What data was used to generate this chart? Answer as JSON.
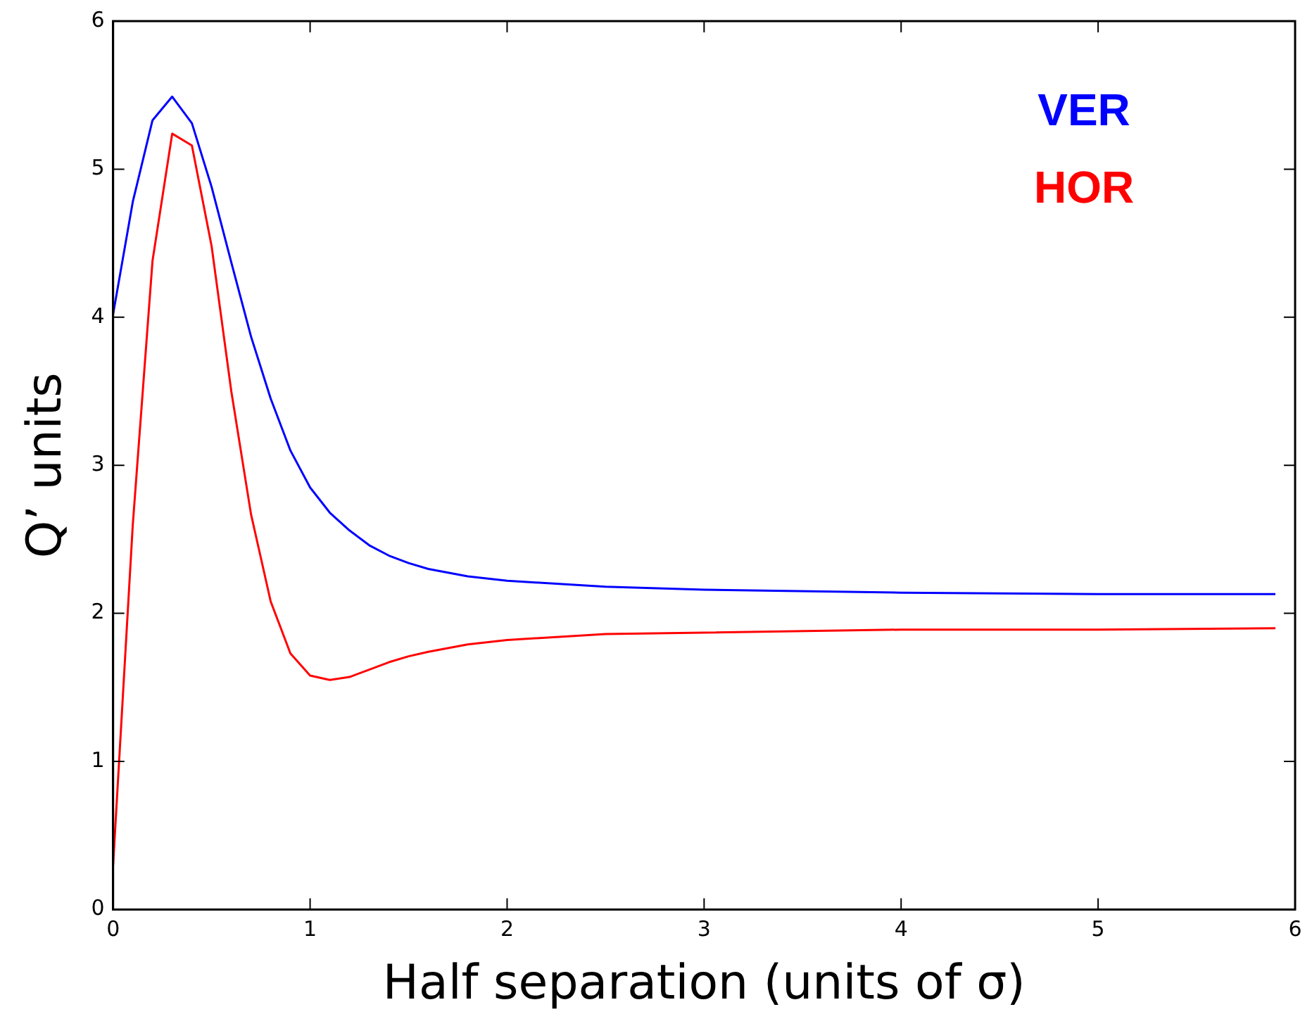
{
  "chart_data": {
    "type": "line",
    "xlabel": "Half separation (units of σ)",
    "ylabel": "Q’ units",
    "x": [
      0,
      0.1,
      0.2,
      0.3,
      0.4,
      0.5,
      0.6,
      0.7,
      0.8,
      0.9,
      1.0,
      1.1,
      1.2,
      1.3,
      1.4,
      1.5,
      1.6,
      1.8,
      2.0,
      2.5,
      3.0,
      4.0,
      5.0,
      5.9
    ],
    "series": [
      {
        "name": "VER",
        "color": "#0000ff",
        "values": [
          4.02,
          4.78,
          5.33,
          5.49,
          5.31,
          4.88,
          4.37,
          3.87,
          3.45,
          3.1,
          2.85,
          2.68,
          2.56,
          2.46,
          2.39,
          2.34,
          2.3,
          2.25,
          2.22,
          2.18,
          2.16,
          2.14,
          2.13,
          2.13
        ]
      },
      {
        "name": "HOR",
        "color": "#ff0000",
        "values": [
          0.3,
          2.6,
          4.38,
          5.24,
          5.16,
          4.48,
          3.5,
          2.67,
          2.08,
          1.73,
          1.58,
          1.55,
          1.57,
          1.62,
          1.67,
          1.71,
          1.74,
          1.79,
          1.82,
          1.86,
          1.87,
          1.89,
          1.89,
          1.9
        ]
      }
    ],
    "xlim": [
      0,
      6
    ],
    "xticks": [
      0,
      1,
      2,
      3,
      4,
      5,
      6
    ],
    "ylim": [
      0,
      6
    ],
    "yticks": [
      0,
      1,
      2,
      3,
      4,
      5,
      6
    ],
    "grid": false,
    "legend": "top right",
    "marker": "none",
    "line_style": "solid"
  }
}
